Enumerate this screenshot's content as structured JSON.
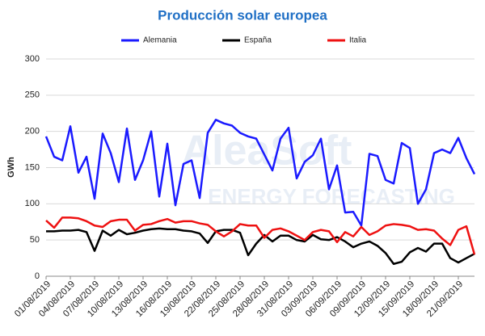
{
  "chart_data": {
    "type": "line",
    "title": "Producción solar europea",
    "y_label": "GWh",
    "watermark": [
      "AleaSoft",
      "ENERGY FORECASTING"
    ],
    "categories": [
      "01/08/2019",
      null,
      null,
      "04/08/2019",
      null,
      null,
      "07/08/2019",
      null,
      null,
      "10/08/2019",
      null,
      null,
      "13/08/2019",
      null,
      null,
      "16/08/2019",
      null,
      null,
      "19/08/2019",
      null,
      null,
      "22/08/2019",
      null,
      null,
      "25/08/2019",
      null,
      null,
      "28/08/2019",
      null,
      null,
      "31/08/2019",
      null,
      null,
      "03/09/2019",
      null,
      null,
      "06/09/2019",
      null,
      null,
      "09/09/2019",
      null,
      null,
      "12/09/2019",
      null,
      null,
      "15/09/2019",
      null,
      null,
      "18/09/2019",
      null,
      null,
      "21/09/2019",
      null,
      null
    ],
    "series": [
      {
        "name": "Alemania",
        "color": "#1a1aff",
        "values": [
          193,
          165,
          160,
          207,
          143,
          165,
          107,
          197,
          170,
          130,
          204,
          133,
          160,
          200,
          110,
          183,
          98,
          155,
          160,
          108,
          198,
          216,
          211,
          208,
          198,
          193,
          190,
          168,
          146,
          190,
          205,
          135,
          158,
          167,
          190,
          120,
          153,
          88,
          89,
          70,
          169,
          166,
          133,
          128,
          184,
          177,
          100,
          120,
          170,
          175,
          170,
          191,
          163,
          141
        ]
      },
      {
        "name": "España",
        "color": "#000000",
        "values": [
          62,
          62,
          63,
          63,
          64,
          61,
          35,
          63,
          56,
          64,
          58,
          60,
          63,
          65,
          66,
          65,
          65,
          63,
          62,
          59,
          46,
          62,
          64,
          64,
          60,
          29,
          45,
          57,
          48,
          56,
          56,
          50,
          48,
          57,
          51,
          50,
          54,
          48,
          40,
          45,
          48,
          42,
          32,
          17,
          20,
          33,
          39,
          34,
          45,
          45,
          25,
          19,
          25,
          31
        ]
      },
      {
        "name": "Italia",
        "color": "#ee1111",
        "values": [
          77,
          67,
          81,
          81,
          80,
          76,
          70,
          68,
          76,
          78,
          78,
          63,
          71,
          72,
          76,
          79,
          74,
          76,
          76,
          73,
          71,
          62,
          55,
          62,
          72,
          70,
          70,
          53,
          64,
          66,
          62,
          56,
          50,
          61,
          64,
          62,
          47,
          61,
          55,
          68,
          57,
          62,
          70,
          72,
          71,
          69,
          64,
          65,
          63,
          52,
          43,
          64,
          69,
          30
        ]
      }
    ],
    "ylim": [
      0,
      300
    ],
    "yticks": [
      0,
      50,
      100,
      150,
      200,
      250,
      300
    ],
    "grid": true,
    "legend": "top"
  }
}
